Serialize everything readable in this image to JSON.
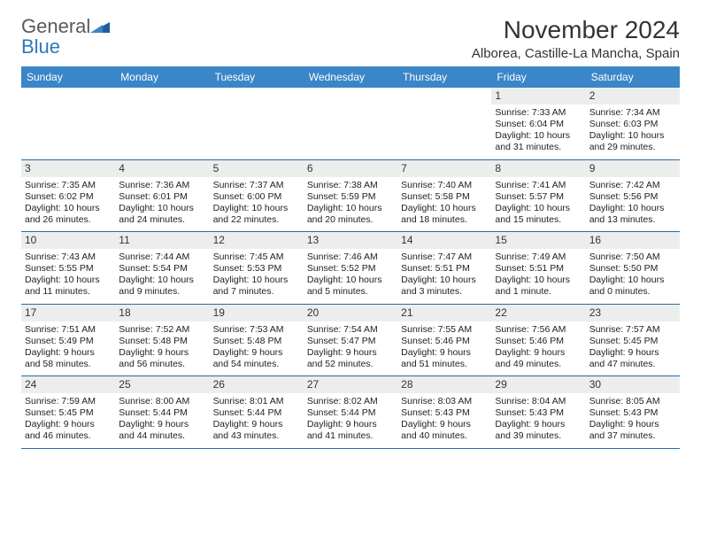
{
  "brand": {
    "word1": "General",
    "word2": "Blue"
  },
  "title": "November 2024",
  "location": "Alborea, Castille-La Mancha, Spain",
  "colors": {
    "header_bg": "#3a86c8",
    "header_text": "#ffffff",
    "daynum_bg": "#eceeee",
    "week_border": "#2b6aa3",
    "brand_gray": "#5a5a5a",
    "brand_blue": "#2f78be"
  },
  "dow": [
    "Sunday",
    "Monday",
    "Tuesday",
    "Wednesday",
    "Thursday",
    "Friday",
    "Saturday"
  ],
  "weeks": [
    [
      null,
      null,
      null,
      null,
      null,
      {
        "n": "1",
        "sr": "7:33 AM",
        "ss": "6:04 PM",
        "dl": "10 hours and 31 minutes."
      },
      {
        "n": "2",
        "sr": "7:34 AM",
        "ss": "6:03 PM",
        "dl": "10 hours and 29 minutes."
      }
    ],
    [
      {
        "n": "3",
        "sr": "7:35 AM",
        "ss": "6:02 PM",
        "dl": "10 hours and 26 minutes."
      },
      {
        "n": "4",
        "sr": "7:36 AM",
        "ss": "6:01 PM",
        "dl": "10 hours and 24 minutes."
      },
      {
        "n": "5",
        "sr": "7:37 AM",
        "ss": "6:00 PM",
        "dl": "10 hours and 22 minutes."
      },
      {
        "n": "6",
        "sr": "7:38 AM",
        "ss": "5:59 PM",
        "dl": "10 hours and 20 minutes."
      },
      {
        "n": "7",
        "sr": "7:40 AM",
        "ss": "5:58 PM",
        "dl": "10 hours and 18 minutes."
      },
      {
        "n": "8",
        "sr": "7:41 AM",
        "ss": "5:57 PM",
        "dl": "10 hours and 15 minutes."
      },
      {
        "n": "9",
        "sr": "7:42 AM",
        "ss": "5:56 PM",
        "dl": "10 hours and 13 minutes."
      }
    ],
    [
      {
        "n": "10",
        "sr": "7:43 AM",
        "ss": "5:55 PM",
        "dl": "10 hours and 11 minutes."
      },
      {
        "n": "11",
        "sr": "7:44 AM",
        "ss": "5:54 PM",
        "dl": "10 hours and 9 minutes."
      },
      {
        "n": "12",
        "sr": "7:45 AM",
        "ss": "5:53 PM",
        "dl": "10 hours and 7 minutes."
      },
      {
        "n": "13",
        "sr": "7:46 AM",
        "ss": "5:52 PM",
        "dl": "10 hours and 5 minutes."
      },
      {
        "n": "14",
        "sr": "7:47 AM",
        "ss": "5:51 PM",
        "dl": "10 hours and 3 minutes."
      },
      {
        "n": "15",
        "sr": "7:49 AM",
        "ss": "5:51 PM",
        "dl": "10 hours and 1 minute."
      },
      {
        "n": "16",
        "sr": "7:50 AM",
        "ss": "5:50 PM",
        "dl": "10 hours and 0 minutes."
      }
    ],
    [
      {
        "n": "17",
        "sr": "7:51 AM",
        "ss": "5:49 PM",
        "dl": "9 hours and 58 minutes."
      },
      {
        "n": "18",
        "sr": "7:52 AM",
        "ss": "5:48 PM",
        "dl": "9 hours and 56 minutes."
      },
      {
        "n": "19",
        "sr": "7:53 AM",
        "ss": "5:48 PM",
        "dl": "9 hours and 54 minutes."
      },
      {
        "n": "20",
        "sr": "7:54 AM",
        "ss": "5:47 PM",
        "dl": "9 hours and 52 minutes."
      },
      {
        "n": "21",
        "sr": "7:55 AM",
        "ss": "5:46 PM",
        "dl": "9 hours and 51 minutes."
      },
      {
        "n": "22",
        "sr": "7:56 AM",
        "ss": "5:46 PM",
        "dl": "9 hours and 49 minutes."
      },
      {
        "n": "23",
        "sr": "7:57 AM",
        "ss": "5:45 PM",
        "dl": "9 hours and 47 minutes."
      }
    ],
    [
      {
        "n": "24",
        "sr": "7:59 AM",
        "ss": "5:45 PM",
        "dl": "9 hours and 46 minutes."
      },
      {
        "n": "25",
        "sr": "8:00 AM",
        "ss": "5:44 PM",
        "dl": "9 hours and 44 minutes."
      },
      {
        "n": "26",
        "sr": "8:01 AM",
        "ss": "5:44 PM",
        "dl": "9 hours and 43 minutes."
      },
      {
        "n": "27",
        "sr": "8:02 AM",
        "ss": "5:44 PM",
        "dl": "9 hours and 41 minutes."
      },
      {
        "n": "28",
        "sr": "8:03 AM",
        "ss": "5:43 PM",
        "dl": "9 hours and 40 minutes."
      },
      {
        "n": "29",
        "sr": "8:04 AM",
        "ss": "5:43 PM",
        "dl": "9 hours and 39 minutes."
      },
      {
        "n": "30",
        "sr": "8:05 AM",
        "ss": "5:43 PM",
        "dl": "9 hours and 37 minutes."
      }
    ]
  ],
  "labels": {
    "sunrise": "Sunrise:",
    "sunset": "Sunset:",
    "daylight": "Daylight:"
  }
}
